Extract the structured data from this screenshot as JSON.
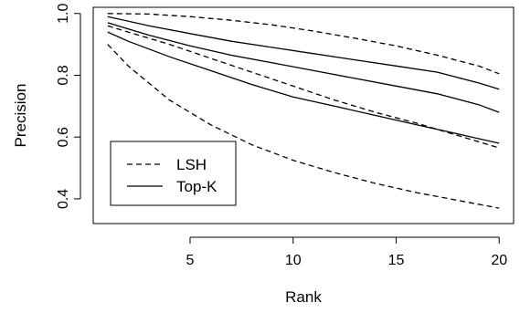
{
  "chart_data": {
    "type": "line",
    "title": "",
    "xlabel": "Rank",
    "ylabel": "Precision",
    "xlim": [
      0.3,
      20.7
    ],
    "ylim": [
      0.32,
      1.02
    ],
    "x_ticks": [
      5,
      10,
      15,
      20
    ],
    "y_ticks": [
      0.4,
      0.6,
      0.8,
      1.0
    ],
    "y_tick_labels": [
      "0.4",
      "0.6",
      "0.8",
      "1.0"
    ],
    "grid": false,
    "legend": {
      "position": "bottom-left",
      "entries": [
        {
          "label": "LSH",
          "style": "dashed"
        },
        {
          "label": "Top-K",
          "style": "solid"
        }
      ]
    },
    "series": [
      {
        "group": "LSH",
        "style": "dashed",
        "x": [
          1,
          3,
          5,
          7,
          9,
          11,
          13,
          15,
          17,
          19,
          20
        ],
        "y": [
          1.0,
          0.998,
          0.99,
          0.978,
          0.963,
          0.943,
          0.92,
          0.895,
          0.865,
          0.83,
          0.805
        ]
      },
      {
        "group": "LSH",
        "style": "dashed",
        "x": [
          1,
          2,
          4,
          6,
          8,
          10,
          12,
          14,
          16,
          18,
          20
        ],
        "y": [
          0.96,
          0.94,
          0.9,
          0.855,
          0.81,
          0.765,
          0.72,
          0.68,
          0.645,
          0.605,
          0.565
        ]
      },
      {
        "group": "LSH",
        "style": "dashed",
        "x": [
          1,
          2,
          4,
          6,
          8,
          10,
          12,
          14,
          16,
          18,
          20
        ],
        "y": [
          0.9,
          0.83,
          0.72,
          0.64,
          0.575,
          0.525,
          0.485,
          0.45,
          0.42,
          0.395,
          0.37
        ]
      },
      {
        "group": "Top-K",
        "style": "solid",
        "x": [
          1,
          3,
          5,
          7,
          9,
          11,
          13,
          15,
          17,
          19,
          20
        ],
        "y": [
          0.99,
          0.96,
          0.935,
          0.91,
          0.89,
          0.87,
          0.85,
          0.83,
          0.81,
          0.775,
          0.755
        ]
      },
      {
        "group": "Top-K",
        "style": "solid",
        "x": [
          1,
          3,
          5,
          7,
          9,
          11,
          13,
          15,
          17,
          19,
          20
        ],
        "y": [
          0.97,
          0.93,
          0.895,
          0.865,
          0.84,
          0.815,
          0.79,
          0.765,
          0.74,
          0.705,
          0.68
        ]
      },
      {
        "group": "Top-K",
        "style": "solid",
        "x": [
          1,
          2,
          4,
          6,
          8,
          10,
          12,
          14,
          16,
          18,
          20
        ],
        "y": [
          0.94,
          0.91,
          0.86,
          0.815,
          0.77,
          0.73,
          0.7,
          0.67,
          0.64,
          0.61,
          0.58
        ]
      }
    ]
  }
}
